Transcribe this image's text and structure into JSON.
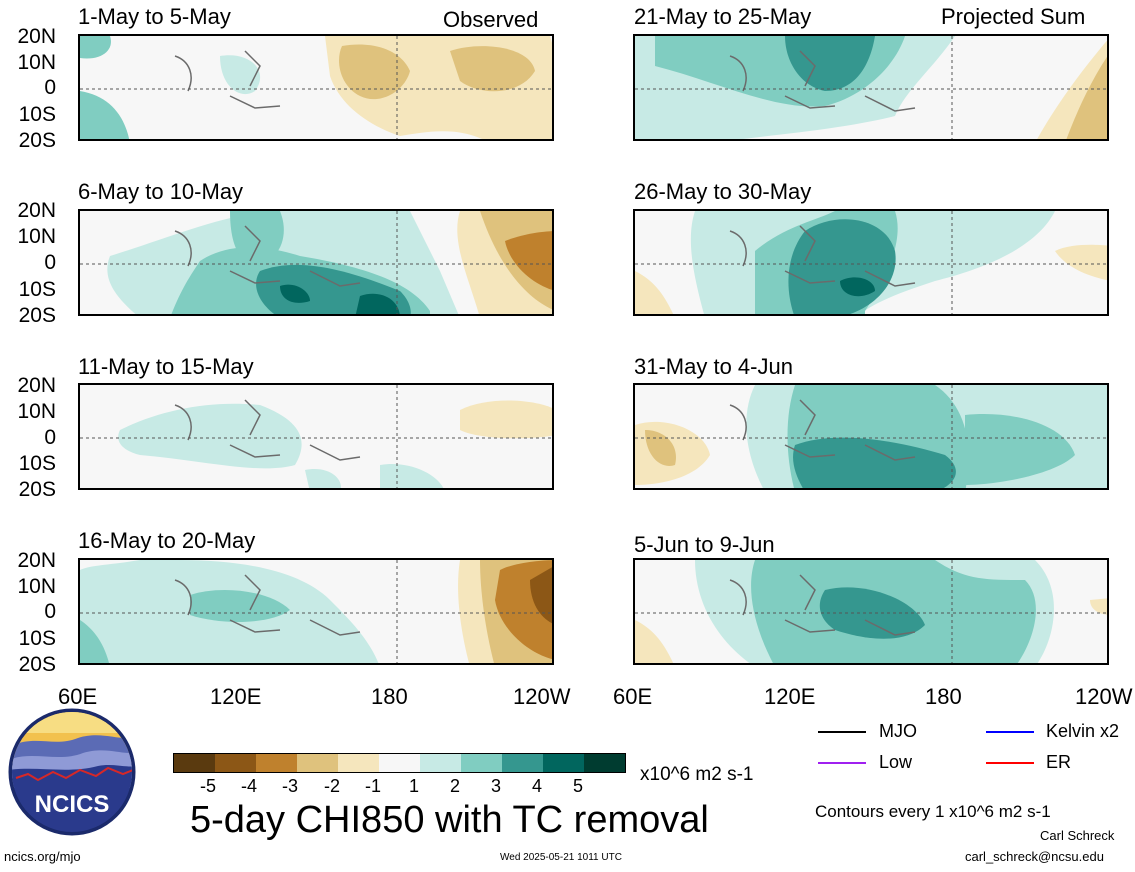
{
  "header": {
    "left_tag": "Observed",
    "right_tag": "Projected Sum"
  },
  "y_ticks": [
    "20N",
    "10N",
    "0",
    "10S",
    "20S"
  ],
  "x_ticks": [
    "60E",
    "120E",
    "180",
    "120W"
  ],
  "panels": [
    {
      "title": "1-May to 5-May"
    },
    {
      "title": "6-May to 10-May"
    },
    {
      "title": "11-May to 15-May"
    },
    {
      "title": "16-May to 20-May"
    },
    {
      "title": "21-May to 25-May"
    },
    {
      "title": "26-May to 30-May"
    },
    {
      "title": "31-May to 4-Jun"
    },
    {
      "title": "5-Jun to 9-Jun"
    }
  ],
  "colorbar": {
    "ticks": [
      "-5",
      "-4",
      "-3",
      "-2",
      "-1",
      "1",
      "2",
      "3",
      "4",
      "5"
    ],
    "colors": [
      "#5a3a0f",
      "#8c5716",
      "#bf812d",
      "#dfc27d",
      "#f5e6bd",
      "#f7f7f7",
      "#c7eae5",
      "#80cdc1",
      "#35978f",
      "#01665e",
      "#003c30"
    ],
    "units": "x10^6 m2 s-1"
  },
  "title": "5-day CHI850 with TC removal",
  "legend": {
    "items": [
      {
        "label": "MJO",
        "color": "#000000"
      },
      {
        "label": "Kelvin x2",
        "color": "#0000ff"
      },
      {
        "label": "Low",
        "color": "#a020f0"
      },
      {
        "label": "ER",
        "color": "#ff0000"
      }
    ],
    "contours": "Contours every 1 x10^6 m2 s-1"
  },
  "footer": {
    "site": "ncics.org/mjo",
    "timestamp": "Wed 2025-05-21 1011 UTC",
    "author": "Carl Schreck",
    "email": "carl_schreck@ncsu.edu",
    "logo_text": "NCICS"
  },
  "chart_data": {
    "type": "heatmap",
    "variable": "5-day CHI850 with TC removal",
    "units": "x10^6 m2 s-1",
    "x_ticks": [
      "60E",
      "120E",
      "180",
      "120W"
    ],
    "y_ticks": [
      "20N",
      "10N",
      "0",
      "10S",
      "20S"
    ],
    "xlim": [
      60,
      240
    ],
    "ylim": [
      -20,
      20
    ],
    "levels": [
      -5,
      -4,
      -3,
      -2,
      -1,
      1,
      2,
      3,
      4,
      5
    ],
    "panels": [
      {
        "title": "1-May to 5-May",
        "group": "Observed"
      },
      {
        "title": "6-May to 10-May",
        "group": "Observed"
      },
      {
        "title": "11-May to 15-May",
        "group": "Observed"
      },
      {
        "title": "16-May to 20-May",
        "group": "Observed"
      },
      {
        "title": "21-May to 25-May",
        "group": "Projected Sum"
      },
      {
        "title": "26-May to 30-May",
        "group": "Projected Sum"
      },
      {
        "title": "31-May to 4-Jun",
        "group": "Projected Sum"
      },
      {
        "title": "5-Jun to 9-Jun",
        "group": "Projected Sum"
      }
    ]
  }
}
